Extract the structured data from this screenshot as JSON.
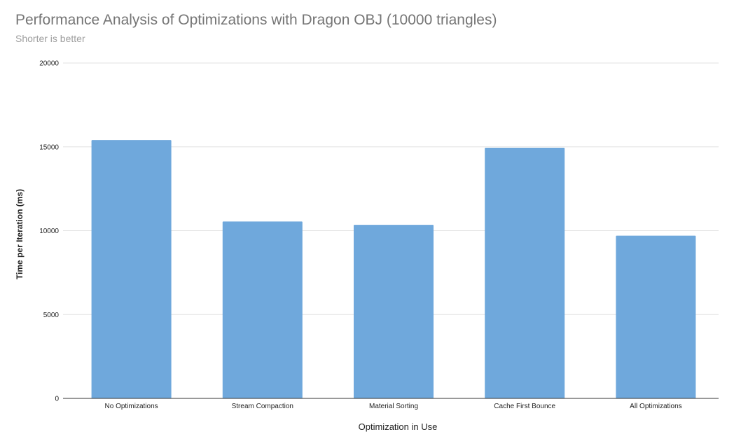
{
  "chart_data": {
    "type": "bar",
    "title": "Performance Analysis of Optimizations with Dragon OBJ (10000 triangles)",
    "subtitle": "Shorter is better",
    "xlabel": "Optimization in Use",
    "ylabel": "Time per Iteration (ms)",
    "categories": [
      "No Optimizations",
      "Stream Compaction",
      "Material Sorting",
      "Cache First Bounce",
      "All Optimizations"
    ],
    "values": [
      15400,
      10550,
      10350,
      14950,
      9700
    ],
    "ylim": [
      0,
      20000
    ],
    "yticks": [
      0,
      5000,
      10000,
      15000,
      20000
    ],
    "grid": true,
    "legend": "none",
    "bar_color": "#6fa8dc",
    "grid_color": "#e0e0e0",
    "axis_color": "#333333"
  }
}
